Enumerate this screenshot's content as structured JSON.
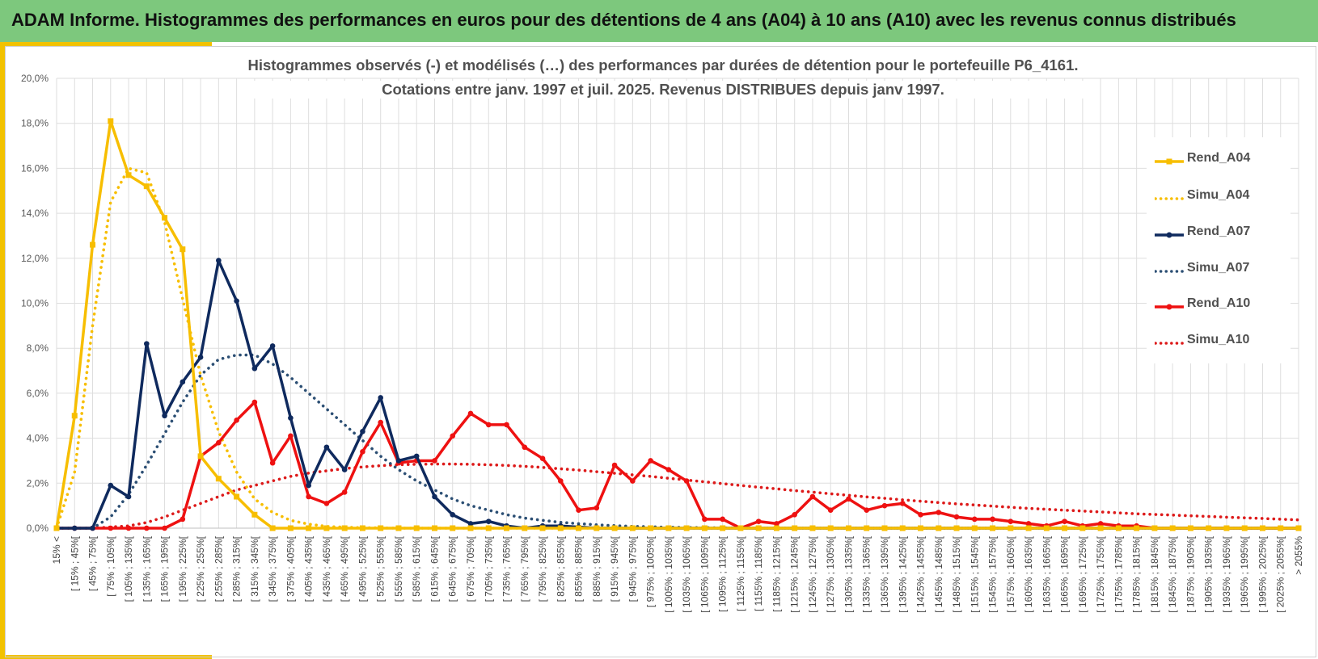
{
  "banner": {
    "title": "ADAM Informe. Histogrammes des performances en euros pour des détentions de 4 ans (A04) à 10 ans (A10) avec les revenus connus distribués"
  },
  "colors": {
    "banner": "#7dc87d",
    "accent": "#f2c200",
    "A04": "#f7be00",
    "A07": "#0f2a5e",
    "A07_simu": "#2c4f74",
    "A10": "#ee1111",
    "A10_simu": "#dd1a1a",
    "grid": "#dedede",
    "text": "#505050"
  },
  "chart_data": {
    "type": "line",
    "title_lines": [
      "Histogrammes observés (-) et modélisés (…) des performances par durées de détention pour le portefeuille P6_4161.",
      "Cotations entre janv. 1997 et juil. 2025. Revenus DISTRIBUES depuis janv 1997."
    ],
    "xlabel": "",
    "ylabel": "",
    "ylim": [
      0,
      20
    ],
    "yticks": [
      "0,0%",
      "2,0%",
      "4,0%",
      "6,0%",
      "8,0%",
      "10,0%",
      "12,0%",
      "14,0%",
      "16,0%",
      "18,0%",
      "20,0%"
    ],
    "grid": true,
    "legend_position": "right",
    "categories": [
      "15% <",
      "[ 15% ; 45%[",
      "[ 45% ; 75%[",
      "[ 75% ; 105%[",
      "[ 105% ; 135%[",
      "[ 135% ; 165%[",
      "[ 165% ; 195%[",
      "[ 195% ; 225%[",
      "[ 225% ; 255%[",
      "[ 255% ; 285%[",
      "[ 285% ; 315%[",
      "[ 315% ; 345%[",
      "[ 345% ; 375%[",
      "[ 375% ; 405%[",
      "[ 405% ; 435%[",
      "[ 435% ; 465%[",
      "[ 465% ; 495%[",
      "[ 495% ; 525%[",
      "[ 525% ; 555%[",
      "[ 555% ; 585%[",
      "[ 585% ; 615%[",
      "[ 615% ; 645%[",
      "[ 645% ; 675%[",
      "[ 675% ; 705%[",
      "[ 705% ; 735%[",
      "[ 735% ; 765%[",
      "[ 765% ; 795%[",
      "[ 795% ; 825%[",
      "[ 825% ; 855%[",
      "[ 855% ; 885%[",
      "[ 885% ; 915%[",
      "[ 915% ; 945%[",
      "[ 945% ; 975%[",
      "[ 975% ; 1005%[",
      "[ 1005% ; 1035%[",
      "[ 1035% ; 1065%[",
      "[ 1065% ; 1095%[",
      "[ 1095% ; 1125%[",
      "[ 1125% ; 1155%[",
      "[ 1155% ; 1185%[",
      "[ 1185% ; 1215%[",
      "[ 1215% ; 1245%[",
      "[ 1245% ; 1275%[",
      "[ 1275% ; 1305%[",
      "[ 1305% ; 1335%[",
      "[ 1335% ; 1365%[",
      "[ 1365% ; 1395%[",
      "[ 1395% ; 1425%[",
      "[ 1425% ; 1455%[",
      "[ 1455% ; 1485%[",
      "[ 1485% ; 1515%[",
      "[ 1515% ; 1545%[",
      "[ 1545% ; 1575%[",
      "[ 1575% ; 1605%[",
      "[ 1605% ; 1635%[",
      "[ 1635% ; 1665%[",
      "[ 1665% ; 1695%[",
      "[ 1695% ; 1725%[",
      "[ 1725% ; 1755%[",
      "[ 1755% ; 1785%[",
      "[ 1785% ; 1815%[",
      "[ 1815% ; 1845%[",
      "[ 1845% ; 1875%[",
      "[ 1875% ; 1905%[",
      "[ 1905% ; 1935%[",
      "[ 1935% ; 1965%[",
      "[ 1965% ; 1995%[",
      "[ 1995% ; 2025%[",
      "[ 2025% ; 2055%[",
      "> 2055%"
    ],
    "series": [
      {
        "name": "Rend_A04",
        "style": "solid",
        "marker": "square",
        "color": "#f7be00",
        "values": [
          0,
          5.0,
          12.6,
          18.1,
          15.7,
          15.2,
          13.8,
          12.4,
          3.2,
          2.2,
          1.4,
          0.6,
          0,
          0,
          0,
          0,
          0,
          0,
          0,
          0,
          0,
          0,
          0,
          0,
          0,
          0,
          0,
          0,
          0,
          0,
          0,
          0,
          0,
          0,
          0,
          0,
          0,
          0,
          0,
          0,
          0,
          0,
          0,
          0,
          0,
          0,
          0,
          0,
          0,
          0,
          0,
          0,
          0,
          0,
          0,
          0,
          0,
          0,
          0,
          0,
          0,
          0,
          0,
          0,
          0,
          0,
          0,
          0,
          0,
          0
        ]
      },
      {
        "name": "Simu_A04",
        "style": "dotted",
        "marker": "none",
        "color": "#f7be00",
        "values": [
          0,
          2.5,
          9.0,
          14.5,
          16.0,
          15.8,
          13.6,
          10.2,
          6.8,
          4.3,
          2.5,
          1.3,
          0.7,
          0.35,
          0.18,
          0.08,
          0.04,
          0.02,
          0.01,
          0,
          0,
          0,
          0,
          0,
          0,
          0,
          0,
          0,
          0,
          0,
          0,
          0,
          0,
          0,
          0,
          0,
          0,
          0,
          0,
          0,
          0,
          0,
          0,
          0,
          0,
          0,
          0,
          0,
          0,
          0,
          0,
          0,
          0,
          0,
          0,
          0,
          0,
          0,
          0,
          0,
          0,
          0,
          0,
          0,
          0,
          0,
          0,
          0,
          0,
          0
        ]
      },
      {
        "name": "Rend_A07",
        "style": "solid",
        "marker": "circle",
        "color": "#0f2a5e",
        "values": [
          0,
          0,
          0,
          1.9,
          1.4,
          8.2,
          5.0,
          6.5,
          7.6,
          11.9,
          10.1,
          7.1,
          8.1,
          4.9,
          1.9,
          3.6,
          2.6,
          4.3,
          5.8,
          3.0,
          3.2,
          1.4,
          0.6,
          0.2,
          0.3,
          0.1,
          0,
          0.1,
          0.1,
          0.05,
          0,
          0,
          0,
          0,
          0,
          0,
          0,
          0,
          0,
          0,
          0,
          0,
          0,
          0,
          0,
          0,
          0,
          0,
          0,
          0,
          0,
          0,
          0,
          0,
          0,
          0,
          0,
          0,
          0,
          0,
          0,
          0,
          0,
          0,
          0,
          0,
          0,
          0,
          0,
          0
        ]
      },
      {
        "name": "Simu_A07",
        "style": "dotted",
        "marker": "none",
        "color": "#2c4f74",
        "values": [
          0,
          0,
          0,
          0.5,
          1.5,
          2.8,
          4.2,
          5.6,
          6.8,
          7.5,
          7.7,
          7.7,
          7.3,
          6.7,
          6.0,
          5.3,
          4.6,
          3.9,
          3.2,
          2.6,
          2.1,
          1.7,
          1.3,
          1.0,
          0.8,
          0.6,
          0.45,
          0.35,
          0.26,
          0.2,
          0.15,
          0.11,
          0.08,
          0.06,
          0.04,
          0.03,
          0.02,
          0.01,
          0.01,
          0,
          0,
          0,
          0,
          0,
          0,
          0,
          0,
          0,
          0,
          0,
          0,
          0,
          0,
          0,
          0,
          0,
          0,
          0,
          0,
          0,
          0,
          0,
          0,
          0,
          0,
          0,
          0,
          0,
          0,
          0
        ]
      },
      {
        "name": "Rend_A10",
        "style": "solid",
        "marker": "circle",
        "color": "#ee1111",
        "values": [
          0,
          0,
          0,
          0,
          0,
          0,
          0,
          0.4,
          3.2,
          3.8,
          4.8,
          5.6,
          2.9,
          4.1,
          1.4,
          1.1,
          1.6,
          3.4,
          4.7,
          2.9,
          3.0,
          3.0,
          4.1,
          5.1,
          4.6,
          4.6,
          3.6,
          3.1,
          2.1,
          0.8,
          0.9,
          2.8,
          2.1,
          3.0,
          2.6,
          2.1,
          0.4,
          0.4,
          0,
          0.3,
          0.2,
          0.6,
          1.4,
          0.8,
          1.3,
          0.8,
          1.0,
          1.1,
          0.6,
          0.7,
          0.5,
          0.4,
          0.4,
          0.3,
          0.2,
          0.1,
          0.3,
          0.1,
          0.2,
          0.1,
          0.1,
          0,
          0,
          0,
          0,
          0,
          0,
          0,
          0,
          0
        ]
      },
      {
        "name": "Simu_A10",
        "style": "dotted",
        "marker": "none",
        "color": "#dd1a1a",
        "values": [
          0,
          0,
          0,
          0.05,
          0.1,
          0.25,
          0.5,
          0.8,
          1.1,
          1.4,
          1.7,
          1.9,
          2.1,
          2.3,
          2.45,
          2.55,
          2.65,
          2.72,
          2.78,
          2.82,
          2.84,
          2.85,
          2.85,
          2.84,
          2.82,
          2.79,
          2.75,
          2.7,
          2.64,
          2.58,
          2.51,
          2.44,
          2.37,
          2.3,
          2.22,
          2.14,
          2.06,
          1.98,
          1.9,
          1.82,
          1.75,
          1.67,
          1.6,
          1.53,
          1.46,
          1.39,
          1.33,
          1.26,
          1.2,
          1.14,
          1.08,
          1.03,
          0.98,
          0.93,
          0.88,
          0.84,
          0.8,
          0.76,
          0.72,
          0.68,
          0.64,
          0.61,
          0.58,
          0.55,
          0.52,
          0.49,
          0.46,
          0.43,
          0.4,
          0.37
        ]
      }
    ]
  }
}
